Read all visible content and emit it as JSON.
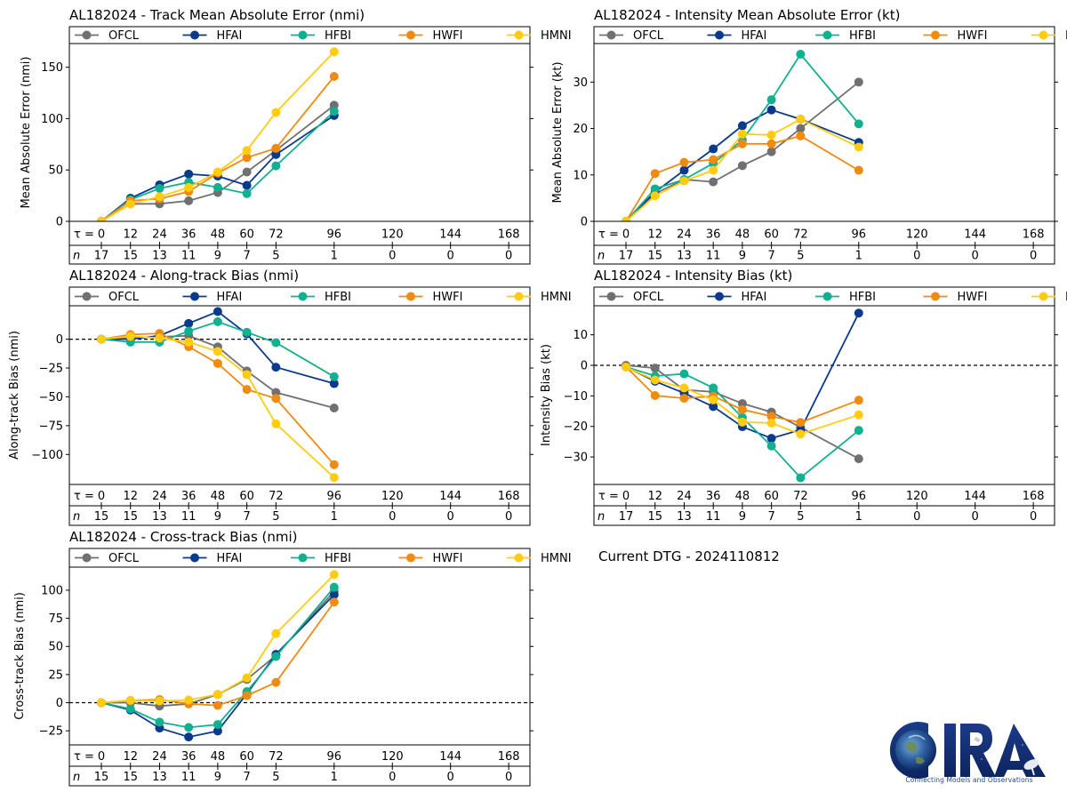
{
  "storm_id": "AL182024",
  "dtg_label": "Current DTG - 2024110812",
  "logo": {
    "text": "CIRA",
    "tagline": "Connecting Models and Observations"
  },
  "series_colors": {
    "OFCL": "#707070",
    "HFAI": "#0a3a8c",
    "HFBI": "#10b090",
    "HWFI": "#f08a10",
    "HMNI": "#ffcc10"
  },
  "chart_data": [
    {
      "id": "track-mae",
      "type": "line",
      "title": "AL182024 - Track Mean Absolute Error (nmi)",
      "ylabel": "Mean Absolute Error (nmi)",
      "xlabel": "τ",
      "ylim": [
        0,
        173
      ],
      "yticks": [
        0,
        50,
        100,
        150
      ],
      "zero_line": false,
      "legend": "top",
      "tau": [
        0,
        12,
        24,
        36,
        48,
        60,
        72,
        96,
        120,
        144,
        168
      ],
      "n": [
        17,
        15,
        13,
        11,
        9,
        7,
        5,
        1,
        0,
        0,
        0
      ],
      "x": [
        0,
        12,
        24,
        36,
        48,
        60,
        72,
        96
      ],
      "series": [
        {
          "name": "OFCL",
          "values": [
            0,
            17,
            17,
            20,
            28,
            48,
            69,
            113
          ]
        },
        {
          "name": "HFAI",
          "values": [
            0,
            22.5,
            35.5,
            46,
            44,
            35,
            65,
            103
          ]
        },
        {
          "name": "HFBI",
          "values": [
            0,
            21,
            32,
            38,
            33,
            27,
            54,
            107
          ]
        },
        {
          "name": "HWFI",
          "values": [
            0,
            20,
            22,
            29,
            47,
            62,
            71,
            141
          ]
        },
        {
          "name": "HMNI",
          "values": [
            0,
            17,
            24,
            33,
            48,
            69,
            106,
            165
          ]
        }
      ]
    },
    {
      "id": "intensity-mae",
      "type": "line",
      "title": "AL182024 - Intensity Mean Absolute Error (kt)",
      "ylabel": "Mean Absolute Error (kt)",
      "xlabel": "τ",
      "ylim": [
        0,
        38.3
      ],
      "yticks": [
        0,
        10,
        20,
        30
      ],
      "zero_line": false,
      "legend": "top",
      "tau": [
        0,
        12,
        24,
        36,
        48,
        60,
        72,
        96,
        120,
        144,
        168
      ],
      "n": [
        17,
        15,
        13,
        11,
        9,
        7,
        5,
        1,
        0,
        0,
        0
      ],
      "x": [
        0,
        12,
        24,
        36,
        48,
        60,
        72,
        96
      ],
      "series": [
        {
          "name": "OFCL",
          "values": [
            0,
            6,
            9,
            8.5,
            12,
            15,
            20,
            30
          ]
        },
        {
          "name": "HFAI",
          "values": [
            0,
            6.3,
            11,
            15.6,
            20.6,
            24,
            22,
            17
          ]
        },
        {
          "name": "HFBI",
          "values": [
            0,
            7,
            9,
            12.5,
            17.5,
            26.2,
            36,
            21
          ]
        },
        {
          "name": "HWFI",
          "values": [
            0,
            10.3,
            12.7,
            13.3,
            16.7,
            16.7,
            18.4,
            11
          ]
        },
        {
          "name": "HMNI",
          "values": [
            0,
            5.5,
            8.7,
            11,
            18.8,
            18.6,
            22,
            16
          ]
        }
      ]
    },
    {
      "id": "along-track-bias",
      "type": "line",
      "title": "AL182024 - Along-track Bias (nmi)",
      "ylabel": "Along-track Bias (nmi)",
      "xlabel": "τ",
      "ylim": [
        -126,
        29
      ],
      "yticks": [
        0,
        -25,
        -50,
        -75,
        -100
      ],
      "zero_line": true,
      "legend": "top",
      "tau": [
        0,
        12,
        24,
        36,
        48,
        60,
        72,
        96,
        120,
        144,
        168
      ],
      "n": [
        15,
        15,
        13,
        11,
        9,
        7,
        5,
        1,
        0,
        0,
        0
      ],
      "x": [
        0,
        12,
        24,
        36,
        48,
        60,
        72,
        96
      ],
      "series": [
        {
          "name": "OFCL",
          "values": [
            0,
            1,
            2,
            3,
            -6.7,
            -27.6,
            -46.2,
            -59.7
          ]
        },
        {
          "name": "HFAI",
          "values": [
            0,
            0,
            3,
            13.7,
            24,
            4.6,
            -24.3,
            -38.5
          ]
        },
        {
          "name": "HFBI",
          "values": [
            0,
            -2.5,
            -2.5,
            7,
            15.2,
            6,
            -3,
            -32.5
          ]
        },
        {
          "name": "HWFI",
          "values": [
            0,
            4,
            5,
            -6.5,
            -21,
            -43.6,
            -51.4,
            -108.8
          ]
        },
        {
          "name": "HMNI",
          "values": [
            0,
            2.5,
            1,
            -2.5,
            -10.6,
            -30.7,
            -73.4,
            -120
          ]
        }
      ]
    },
    {
      "id": "intensity-bias",
      "type": "line",
      "title": "AL182024 - Intensity Bias (kt)",
      "ylabel": "Intensity Bias (kt)",
      "xlabel": "τ",
      "ylim": [
        -39,
        19.5
      ],
      "yticks": [
        10,
        0,
        -10,
        -20,
        -30
      ],
      "zero_line": true,
      "legend": "top",
      "tau": [
        0,
        12,
        24,
        36,
        48,
        60,
        72,
        96,
        120,
        144,
        168
      ],
      "n": [
        17,
        15,
        13,
        11,
        9,
        7,
        5,
        1,
        0,
        0,
        0
      ],
      "x": [
        0,
        12,
        24,
        36,
        48,
        60,
        72,
        96
      ],
      "series": [
        {
          "name": "OFCL",
          "values": [
            0,
            -0.9,
            -8,
            -8.7,
            -12.5,
            -15.3,
            -20.3,
            -30.6
          ]
        },
        {
          "name": "HFAI",
          "values": [
            -0.5,
            -5.2,
            -9.1,
            -13.5,
            -20.1,
            -23.9,
            -21.1,
            17.1
          ]
        },
        {
          "name": "HFBI",
          "values": [
            -0.5,
            -3.5,
            -2.8,
            -7.4,
            -17.1,
            -26.4,
            -36.8,
            -21.3
          ]
        },
        {
          "name": "HWFI",
          "values": [
            -0.5,
            -9.9,
            -10.8,
            -10.1,
            -14.5,
            -16.7,
            -18.7,
            -11.4
          ]
        },
        {
          "name": "HMNI",
          "values": [
            -0.6,
            -4.8,
            -7.4,
            -11.3,
            -18.6,
            -18.9,
            -22.5,
            -16.2
          ]
        }
      ]
    },
    {
      "id": "cross-track-bias",
      "type": "line",
      "title": "AL182024 - Cross-track Bias (nmi)",
      "ylabel": "Cross-track Bias (nmi)",
      "xlabel": "τ",
      "ylim": [
        -37.5,
        120.5
      ],
      "yticks": [
        100,
        75,
        50,
        25,
        0,
        -25
      ],
      "zero_line": true,
      "legend": "top",
      "tau": [
        0,
        12,
        24,
        36,
        48,
        60,
        72,
        96,
        120,
        144,
        168
      ],
      "n": [
        15,
        15,
        13,
        11,
        9,
        7,
        5,
        1,
        0,
        0,
        0
      ],
      "x": [
        0,
        12,
        24,
        36,
        48,
        60,
        72,
        96
      ],
      "series": [
        {
          "name": "OFCL",
          "values": [
            0,
            0,
            -3,
            -1,
            7.3,
            20.7,
            42,
            99
          ]
        },
        {
          "name": "HFAI",
          "values": [
            0,
            -6.5,
            -22.6,
            -30.5,
            -25.2,
            8,
            43,
            96
          ]
        },
        {
          "name": "HFBI",
          "values": [
            0,
            -5.5,
            -17.3,
            -22,
            -19.4,
            9.9,
            41,
            102.6
          ]
        },
        {
          "name": "HWFI",
          "values": [
            0,
            2,
            2.8,
            -1,
            -2.4,
            6.3,
            18,
            89.4
          ]
        },
        {
          "name": "HMNI",
          "values": [
            0,
            2,
            1.5,
            2.4,
            7.3,
            22,
            61.4,
            113.9
          ]
        }
      ]
    }
  ]
}
